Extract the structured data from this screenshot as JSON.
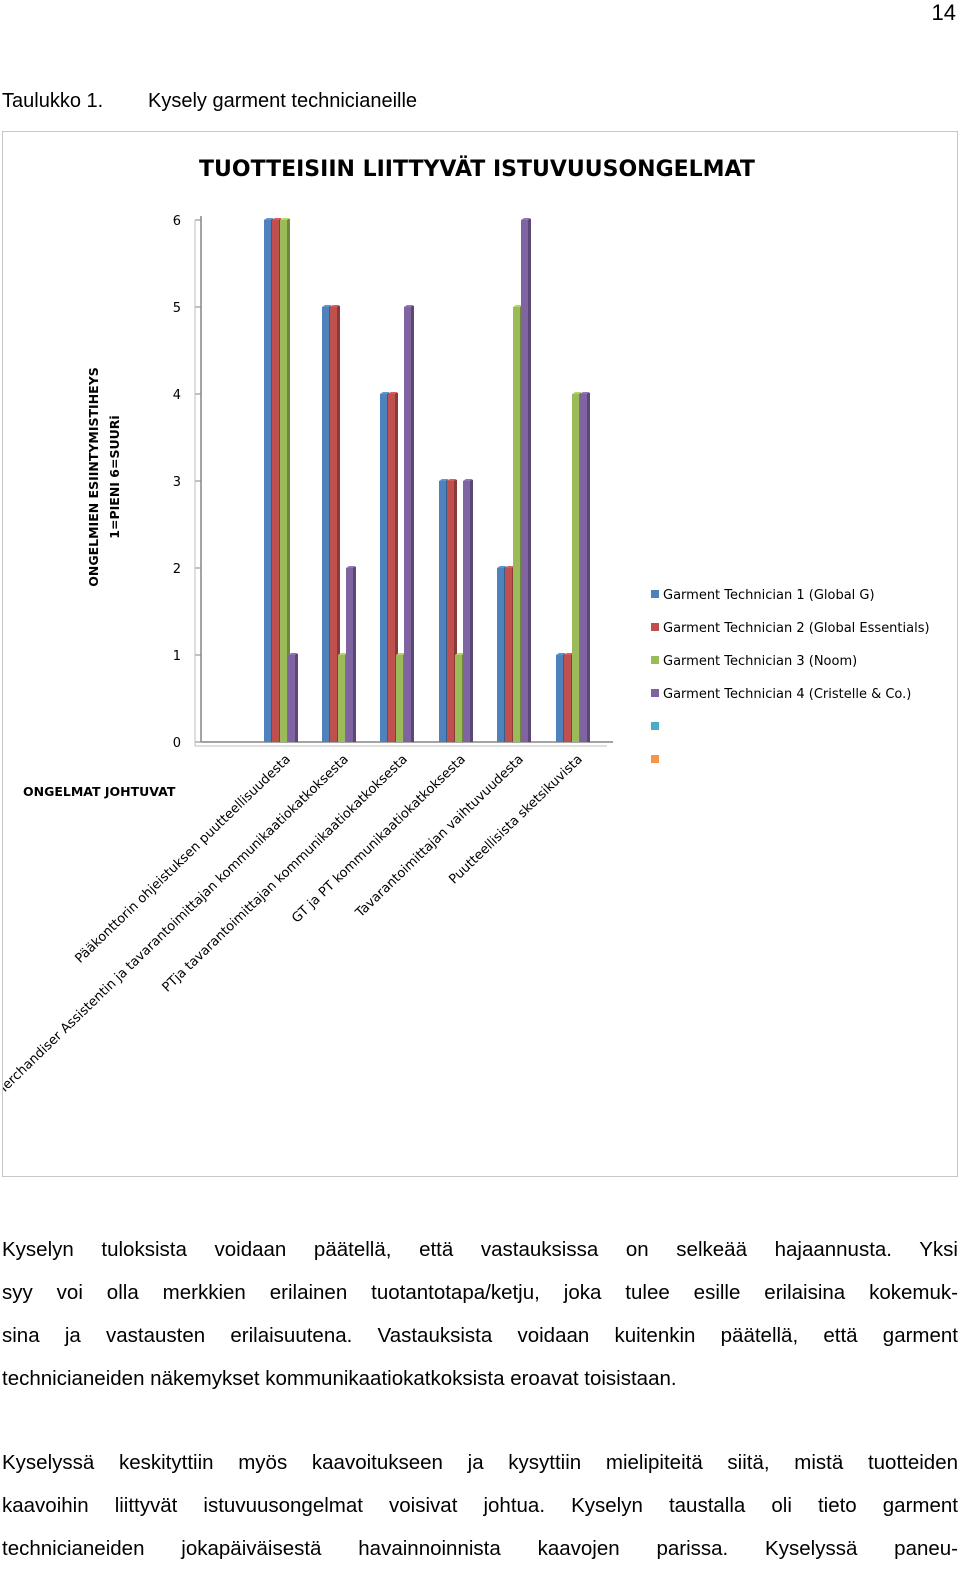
{
  "page": {
    "number": "14",
    "caption_number": "Taulukko 1.",
    "caption_text": "Kysely garment technicianeille"
  },
  "chart_data": {
    "type": "bar",
    "title": "TUOTTEISIIN LIITTYVÄT ISTUVUUSONGELMAT",
    "ylabel_line1": "ONGELMIEN ESIINTYMISTIHEYS",
    "ylabel_line2": "1=PIENI 6=SUURi",
    "xlabel": "ONGELMAT JOHTUVAT",
    "ylim": [
      0,
      6
    ],
    "yticks": [
      "0",
      "1",
      "2",
      "3",
      "4",
      "5",
      "6"
    ],
    "categories": [
      "Pääkonttorin ohjeistuksen puutteellisuudesta",
      "Merchandiser Assistentin ja tavarantoimittajan kommunikaatiokatkoksesta",
      "PTja tavarantoimittajan kommunikaatiokatkoksesta",
      "GT ja PT kommunikaatiokatkoksesta",
      "Tavarantoimittajan vaihtuvuudesta",
      "Puutteellisista sketsikuvista"
    ],
    "series": [
      {
        "name": "Garment Technician 1 (Global G)",
        "color": "#4f81bd",
        "values": [
          6,
          5,
          4,
          3,
          2,
          1
        ]
      },
      {
        "name": "Garment Technician 2 (Global Essentials)",
        "color": "#c0504d",
        "values": [
          6,
          5,
          4,
          3,
          2,
          1
        ]
      },
      {
        "name": "Garment Technician 3 (Noom)",
        "color": "#9bbb59",
        "values": [
          6,
          1,
          1,
          1,
          5,
          4
        ]
      },
      {
        "name": "Garment Technician 4 (Cristelle & Co.)",
        "color": "#8064a2",
        "values": [
          1,
          2,
          5,
          3,
          6,
          4
        ]
      }
    ],
    "legend_extra_colors": [
      "#4bacc6",
      "#f79646"
    ],
    "legend_placement": "right",
    "grid": false
  },
  "body": {
    "para1_lines": [
      "Kyselyn tuloksista voidaan päätellä, että vastauksissa on selkeää hajaannusta. Yksi",
      "syy voi olla merkkien erilainen tuotantotapa/ketju, joka tulee esille erilaisina kokemuk-",
      "sina ja vastausten erilaisuutena. Vastauksista voidaan kuitenkin päätellä, että garment",
      "technicianeiden näkemykset kommunikaatiokatkoksista eroavat toisistaan."
    ],
    "para2_lines": [
      "Kyselyssä keskityttiin myös kaavoitukseen ja kysyttiin mielipiteitä siitä, mistä tuotteiden",
      "kaavoihin liittyvät istuvuusongelmat voisivat johtua. Kyselyn taustalla oli tieto garment",
      "technicianeiden jokapäiväisestä havainnoinnista kaavojen parissa. Kyselyssä paneu-"
    ]
  }
}
